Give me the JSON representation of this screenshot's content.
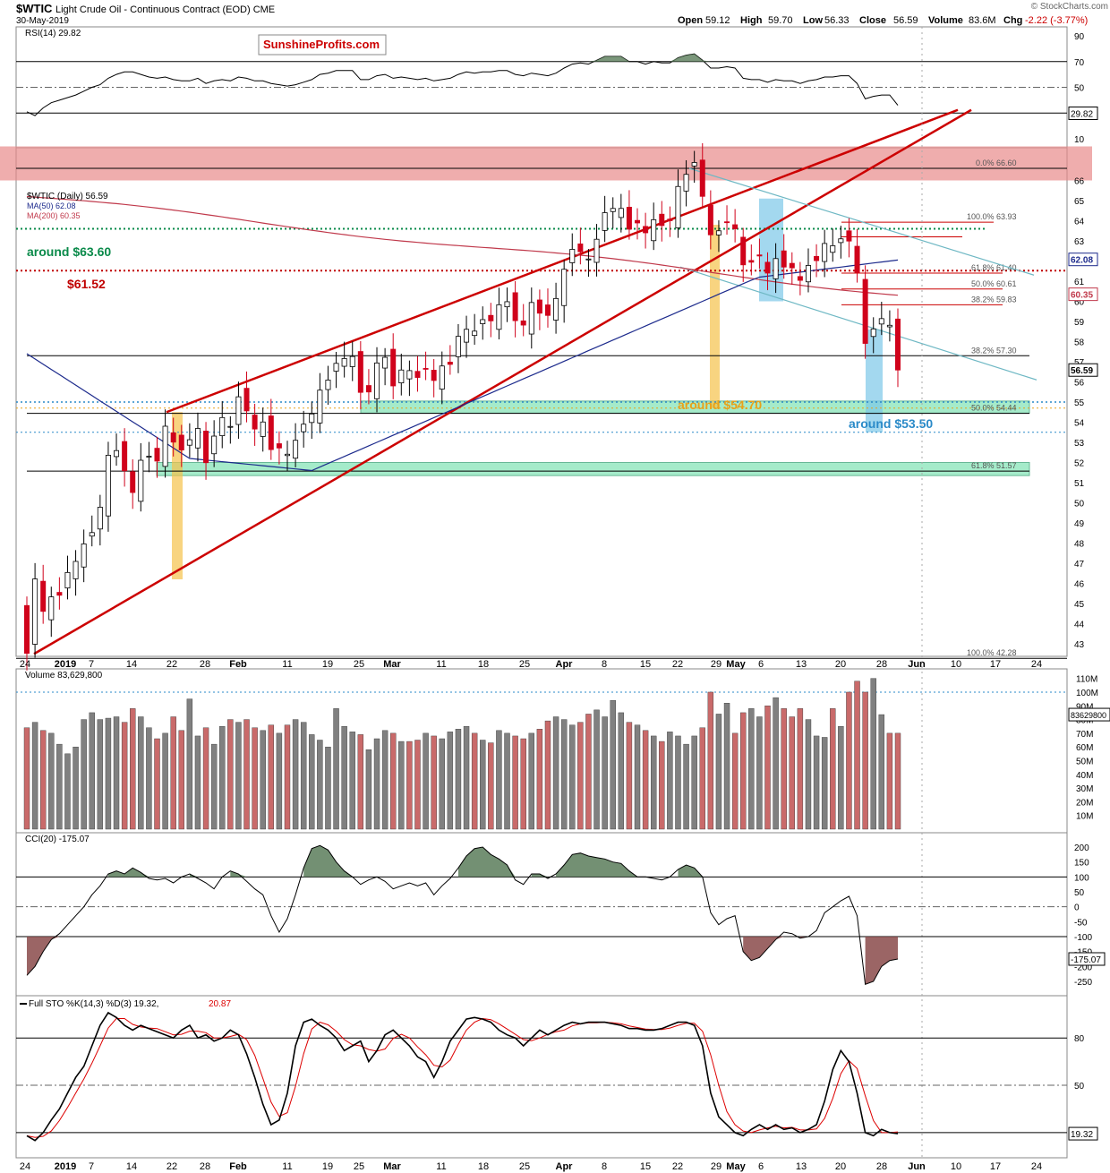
{
  "header": {
    "symbol": "$WTIC",
    "name": "Light Crude Oil - Continuous Contract (EOD)",
    "exchange": "CME",
    "date": "30-May-2019",
    "credit": "© StockCharts.com",
    "ohlc": {
      "open_label": "Open",
      "open": "59.12",
      "high_label": "High",
      "high": "59.70",
      "low_label": "Low",
      "low": "56.33",
      "close_label": "Close",
      "close": "56.59",
      "volume_label": "Volume",
      "volume": "83.6M",
      "chg_label": "Chg",
      "chg": "-2.22 (-3.77%)"
    }
  },
  "watermark": "SunshineProfits.com",
  "colors": {
    "up": "#ffffff",
    "down": "#d0021b",
    "ma50": "#1c2a8c",
    "ma200": "#c0394b",
    "trend": "#cc0000",
    "channel": "#6fb8c4",
    "resistance_zone": "#e88a8a",
    "support_zone": "#7fe3b4",
    "yellow": "#f5c24a",
    "blue_zone": "#7cc7e8",
    "vol_up": "#808080",
    "vol_down": "#c96a6a",
    "fill_green": "#5a7d5a",
    "fill_red": "#8a4a4a"
  },
  "panels": {
    "rsi": {
      "label": "RSI(14) 29.82",
      "value_tag": "29.82",
      "ticks": [
        90,
        70,
        50,
        30,
        10
      ],
      "levels": [
        70,
        50,
        30
      ]
    },
    "price": {
      "legend": [
        "$WTIC (Daily) 56.59",
        "MA(50) 62.08",
        "MA(200) 60.35"
      ],
      "value_tags": {
        "ma50": "62.08",
        "ma200": "60.35",
        "close": "56.59"
      },
      "ticks": [
        43,
        44,
        45,
        46,
        47,
        48,
        49,
        50,
        51,
        52,
        53,
        54,
        55,
        56,
        57,
        58,
        59,
        60,
        61,
        62,
        63,
        64,
        65,
        66
      ],
      "annotations": [
        {
          "text": "around $63.60",
          "color": "#0a8a4a"
        },
        {
          "text": "$61.52",
          "color": "#c00000"
        },
        {
          "text": "around $54.70",
          "color": "#e8a21a"
        },
        {
          "text": "around $53.50",
          "color": "#2a8ac8"
        }
      ],
      "fib_labels": [
        "0.0% 66.60",
        "100.0% 63.93",
        "61.8% 61.40",
        "50.0% 60.61",
        "38.2% 59.83",
        "38.2% 57.30",
        "50.0% 54.44",
        "61.8% 51.57",
        "100.0% 42.28"
      ]
    },
    "volume": {
      "label": "Volume 83,629,800",
      "value_tag": "83629800",
      "ticks": [
        "110M",
        "100M",
        "90M",
        "80M",
        "70M",
        "60M",
        "50M",
        "40M",
        "30M",
        "20M",
        "10M"
      ]
    },
    "cci": {
      "label": "CCI(20) -175.07",
      "value_tag": "-175.07",
      "ticks": [
        200,
        150,
        100,
        50,
        0,
        -50,
        -100,
        -150,
        -200,
        -250
      ]
    },
    "sto": {
      "label_k": "Full STO %K(14,3) %D(3) 19.32,",
      "label_d": "20.87",
      "value_tag": "19.32",
      "ticks": [
        80,
        50,
        20
      ]
    }
  },
  "x_axis": {
    "labels": [
      "24",
      "2019",
      "7",
      "14",
      "22",
      "28",
      "Feb",
      "11",
      "19",
      "25",
      "Mar",
      "11",
      "18",
      "25",
      "Apr",
      "8",
      "15",
      "22",
      "29",
      "May",
      "6",
      "13",
      "20",
      "28",
      "Jun",
      "10",
      "17",
      "24"
    ]
  },
  "chart_data": {
    "type": "candlestick",
    "title": "$WTIC Light Crude Oil - Continuous Contract (EOD)",
    "dates": [
      "2018-12-24",
      "2018-12-26",
      "2018-12-27",
      "2018-12-28",
      "2018-12-31",
      "2019-01-02",
      "2019-01-03",
      "2019-01-04",
      "2019-01-07",
      "2019-01-08",
      "2019-01-09",
      "2019-01-10",
      "2019-01-11",
      "2019-01-14",
      "2019-01-15",
      "2019-01-16",
      "2019-01-17",
      "2019-01-18",
      "2019-01-22",
      "2019-01-23",
      "2019-01-24",
      "2019-01-25",
      "2019-01-28",
      "2019-01-29",
      "2019-01-30",
      "2019-01-31",
      "2019-02-01",
      "2019-02-04",
      "2019-02-05",
      "2019-02-06",
      "2019-02-07",
      "2019-02-08",
      "2019-02-11",
      "2019-02-12",
      "2019-02-13",
      "2019-02-14",
      "2019-02-15",
      "2019-02-19",
      "2019-02-20",
      "2019-02-21",
      "2019-02-22",
      "2019-02-25",
      "2019-02-26",
      "2019-02-27",
      "2019-02-28",
      "2019-03-01",
      "2019-03-04",
      "2019-03-05",
      "2019-03-06",
      "2019-03-07",
      "2019-03-08",
      "2019-03-11",
      "2019-03-12",
      "2019-03-13",
      "2019-03-14",
      "2019-03-15",
      "2019-03-18",
      "2019-03-19",
      "2019-03-20",
      "2019-03-21",
      "2019-03-22",
      "2019-03-25",
      "2019-03-26",
      "2019-03-27",
      "2019-03-28",
      "2019-03-29",
      "2019-04-01",
      "2019-04-02",
      "2019-04-03",
      "2019-04-04",
      "2019-04-05",
      "2019-04-08",
      "2019-04-09",
      "2019-04-10",
      "2019-04-11",
      "2019-04-12",
      "2019-04-15",
      "2019-04-16",
      "2019-04-17",
      "2019-04-18",
      "2019-04-22",
      "2019-04-23",
      "2019-04-24",
      "2019-04-25",
      "2019-04-26",
      "2019-04-29",
      "2019-04-30",
      "2019-05-01",
      "2019-05-02",
      "2019-05-03",
      "2019-05-06",
      "2019-05-07",
      "2019-05-08",
      "2019-05-09",
      "2019-05-10",
      "2019-05-13",
      "2019-05-14",
      "2019-05-15",
      "2019-05-16",
      "2019-05-17",
      "2019-05-20",
      "2019-05-21",
      "2019-05-22",
      "2019-05-23",
      "2019-05-24",
      "2019-05-28",
      "2019-05-29",
      "2019-05-30"
    ],
    "close": [
      42.53,
      46.22,
      44.61,
      45.33,
      45.41,
      46.54,
      47.09,
      47.96,
      48.52,
      49.78,
      52.36,
      52.59,
      51.59,
      50.51,
      52.11,
      52.31,
      52.07,
      53.8,
      53.01,
      52.62,
      53.13,
      53.69,
      51.99,
      53.31,
      54.23,
      53.79,
      55.26,
      54.56,
      53.66,
      54.01,
      52.64,
      52.72,
      52.41,
      53.1,
      53.9,
      54.41,
      55.59,
      56.09,
      56.92,
      57.16,
      57.26,
      55.48,
      55.5,
      56.94,
      57.22,
      55.8,
      56.59,
      56.56,
      56.22,
      56.66,
      56.07,
      56.79,
      56.87,
      58.26,
      58.61,
      58.52,
      59.09,
      59.03,
      59.83,
      59.98,
      59.04,
      58.82,
      59.94,
      59.41,
      59.3,
      60.14,
      61.59,
      62.58,
      62.46,
      62.1,
      63.08,
      64.4,
      64.61,
      64.61,
      63.58,
      63.89,
      63.4,
      64.05,
      63.76,
      64.0,
      65.7,
      66.3,
      66.89,
      65.21,
      63.3,
      63.5,
      63.91,
      63.6,
      61.81,
      61.94,
      62.25,
      61.4,
      62.12,
      61.7,
      61.66,
      61.04,
      61.78,
      62.02,
      62.87,
      62.76,
      63.1,
      62.99,
      61.42,
      57.91,
      58.63,
      59.14,
      58.81,
      56.59
    ],
    "ma50_last": 62.08,
    "ma200_last": 60.35,
    "rsi_last": 29.82,
    "cci_last": -175.07,
    "sto_k_last": 19.32,
    "sto_d_last": 20.87,
    "volume_last": 83629800
  }
}
